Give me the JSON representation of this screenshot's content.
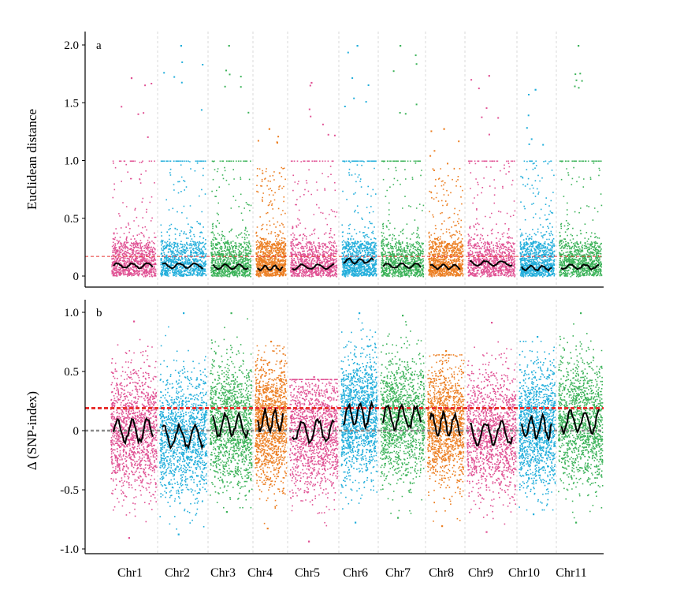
{
  "chart_data": [
    {
      "type": "scatter",
      "panel": "a",
      "ylabel": "Euclidean distance",
      "xlabel": "",
      "ylim": [
        0,
        2.0
      ],
      "yticks": [
        "2.0",
        "1.5",
        "1.0",
        "0.5",
        "0"
      ],
      "ytick_values": [
        2.0,
        1.5,
        1.0,
        0.5,
        0.0
      ],
      "grid": "vertical dashed chromosome separators",
      "threshold": {
        "value": 0.17,
        "color": "#e8312f",
        "style": "dashed"
      },
      "categories": [
        "Chr1",
        "Chr2",
        "Chr3",
        "Chr4",
        "Chr5",
        "Chr6",
        "Chr7",
        "Chr8",
        "Chr9",
        "Chr10",
        "Chr11"
      ],
      "series": [
        {
          "values": [
            0.09,
            0.09,
            0.08,
            0.07,
            0.08,
            0.13,
            0.09,
            0.08,
            0.11,
            0.07,
            0.08
          ]
        },
        {
          "values": [
            1.72,
            2.0,
            2.0,
            1.28,
            1.68,
            2.0,
            2.0,
            1.28,
            1.74,
            1.62,
            2.0
          ]
        }
      ]
    },
    {
      "type": "scatter",
      "panel": "b",
      "ylabel": "Δ (SNP-index)",
      "xlabel": "",
      "ylim": [
        -1.0,
        1.0
      ],
      "yticks": [
        "1.0",
        "0.5",
        "0",
        "-0.5",
        "-1.0"
      ],
      "ytick_values": [
        1.0,
        0.5,
        0.0,
        -0.5,
        -1.0
      ],
      "grid": "vertical dashed chromosome separators",
      "threshold": {
        "value": 0.19,
        "color": "#e8312f",
        "style": "dashed"
      },
      "zero_line": {
        "value": 0.0,
        "color": "#8a8a8a",
        "style": "dashed"
      },
      "categories": [
        "Chr1",
        "Chr2",
        "Chr3",
        "Chr4",
        "Chr5",
        "Chr6",
        "Chr7",
        "Chr8",
        "Chr9",
        "Chr10",
        "Chr11"
      ],
      "series": [
        {
          "values": [
            0.0,
            -0.05,
            0.05,
            0.08,
            0.0,
            0.13,
            0.11,
            0.05,
            -0.02,
            0.03,
            0.08
          ]
        },
        {
          "values": [
            0.93,
            1.0,
            1.0,
            0.76,
            0.46,
            1.0,
            0.98,
            0.68,
            0.92,
            0.8,
            1.0
          ]
        },
        {
          "values": [
            -0.9,
            -0.87,
            -0.68,
            -0.82,
            -0.93,
            -0.77,
            -0.73,
            -0.8,
            -0.85,
            -0.7,
            -0.77
          ]
        }
      ]
    }
  ],
  "chromosomes": [
    {
      "name": "Chr1",
      "color": "#e05294"
    },
    {
      "name": "Chr2",
      "color": "#22aedb"
    },
    {
      "name": "Chr3",
      "color": "#3db35a"
    },
    {
      "name": "Chr4",
      "color": "#ec7f23"
    },
    {
      "name": "Chr5",
      "color": "#e05294"
    },
    {
      "name": "Chr6",
      "color": "#22aedb"
    },
    {
      "name": "Chr7",
      "color": "#3db35a"
    },
    {
      "name": "Chr8",
      "color": "#ec7f23"
    },
    {
      "name": "Chr9",
      "color": "#e05294"
    },
    {
      "name": "Chr10",
      "color": "#22aedb"
    },
    {
      "name": "Chr11",
      "color": "#3db35a"
    }
  ],
  "colors": {
    "threshold": "#e8312f",
    "trend": "#000000",
    "zero_line": "#8a8a8a"
  }
}
